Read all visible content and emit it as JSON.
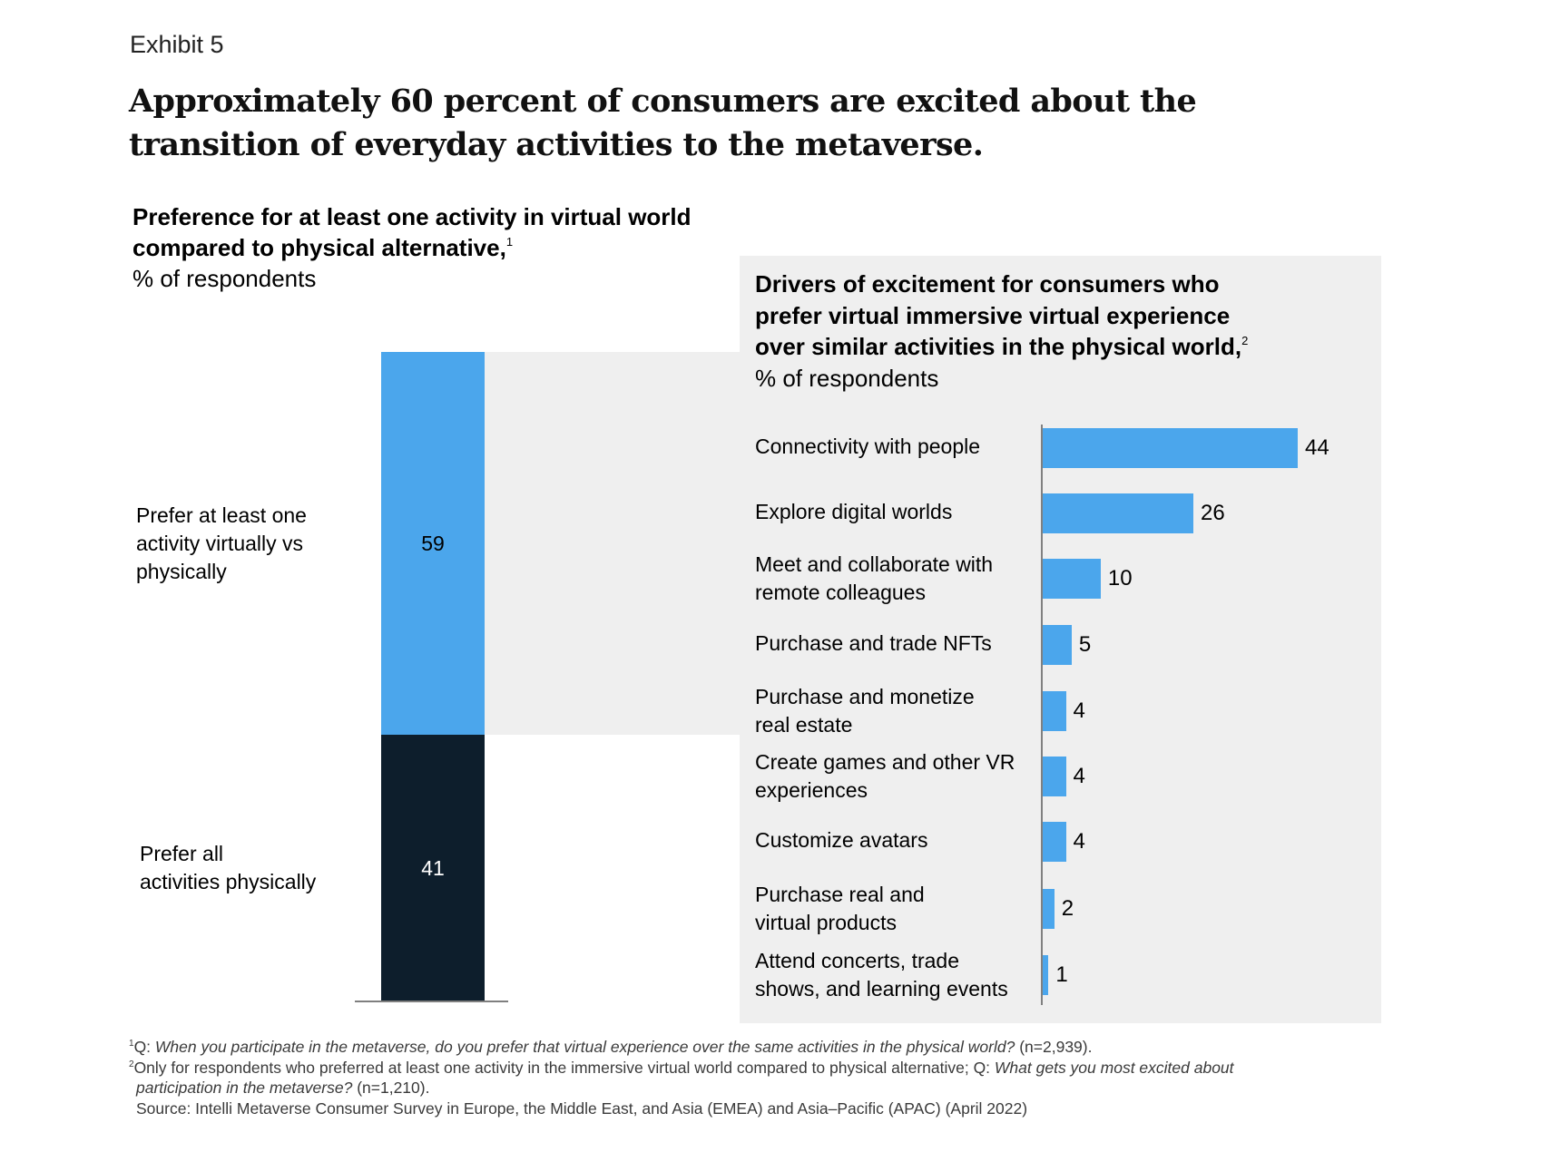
{
  "exhibit_label": "Exhibit 5",
  "headline": "Approximately 60 percent of consumers are excited about the transition of everyday activities to the metaverse.",
  "colors": {
    "virtual_blue": "#4ba6ec",
    "physical_navy": "#0d1e2c",
    "panel_gray": "#efefef",
    "axis_gray": "#808080"
  },
  "chart_data": [
    {
      "type": "bar",
      "stacked": true,
      "orientation": "vertical",
      "title": "Preference for at least one activity in virtual world compared to physical alternative,",
      "title_footnote": "1",
      "subtitle": "% of respondents",
      "categories": [
        "Prefer at least one activity virtually vs physically",
        "Prefer all activities physically"
      ],
      "series": [
        {
          "name": "Prefer at least one activity virtually vs physically",
          "value": 59,
          "label": "59",
          "color": "#4ba6ec"
        },
        {
          "name": "Prefer all activities physically",
          "value": 41,
          "label": "41",
          "color": "#0d1e2c"
        }
      ],
      "ylim": [
        0,
        100
      ],
      "grid": false
    },
    {
      "type": "bar",
      "orientation": "horizontal",
      "title": "Drivers of excitement for consumers who prefer virtual immersive virtual experience over similar activities in the physical world,",
      "title_footnote": "2",
      "subtitle": "% of respondents",
      "categories": [
        "Connectivity with people",
        "Explore digital worlds",
        "Meet and collaborate with remote colleagues",
        "Purchase and trade NFTs",
        "Purchase and monetize real estate",
        "Create games and other VR experiences",
        "Customize avatars",
        "Purchase real and virtual products",
        "Attend concerts, trade shows, and learning events"
      ],
      "category_lines": [
        [
          "Connectivity with people"
        ],
        [
          "Explore digital worlds"
        ],
        [
          "Meet and collaborate with",
          "remote colleagues"
        ],
        [
          "Purchase and trade NFTs"
        ],
        [
          "Purchase and monetize",
          "real estate"
        ],
        [
          "Create games and other VR",
          "experiences"
        ],
        [
          "Customize avatars"
        ],
        [
          "Purchase real and",
          "virtual products"
        ],
        [
          "Attend concerts, trade",
          "shows, and learning events"
        ]
      ],
      "values": [
        44,
        26,
        10,
        5,
        4,
        4,
        4,
        2,
        1
      ],
      "value_labels": [
        "44",
        "26",
        "10",
        "5",
        "4",
        "4",
        "4",
        "2",
        "1"
      ],
      "xlim": [
        0,
        44
      ],
      "grid": false,
      "color": "#4ba6ec"
    }
  ],
  "left_chart": {
    "title": "Preference for at least one activity in virtual world compared to physical alternative,",
    "title_footnote": "1",
    "subtitle": "% of respondents",
    "labels": {
      "virtual_lines": [
        "Prefer at least one",
        "activity virtually vs",
        "physically"
      ],
      "physical_lines": [
        "Prefer all",
        "activities physically"
      ]
    }
  },
  "right_chart": {
    "title_lines": [
      "Drivers of excitement for consumers who",
      "prefer virtual immersive virtual experience",
      "over similar activities in the physical world,"
    ],
    "title_footnote": "2",
    "subtitle": "% of respondents"
  },
  "footnotes": {
    "note1": {
      "marker": "1",
      "prefix": "Q: ",
      "italic": "When you participate in the metaverse, do you prefer that virtual experience over the same activities in the physical world?",
      "suffix": " (n=2,939)."
    },
    "note2": {
      "marker": "2",
      "prefix": "Only for respondents who preferred at least one activity in the immersive virtual world compared to physical alternative; Q: ",
      "italic_line1": "What gets you most excited about",
      "italic_line2": "participation in the metaverse?",
      "suffix": " (n=1,210)."
    },
    "source": "Source: Intelli Metaverse Consumer Survey in Europe, the Middle East, and Asia (EMEA) and Asia–Pacific (APAC) (April 2022)"
  }
}
